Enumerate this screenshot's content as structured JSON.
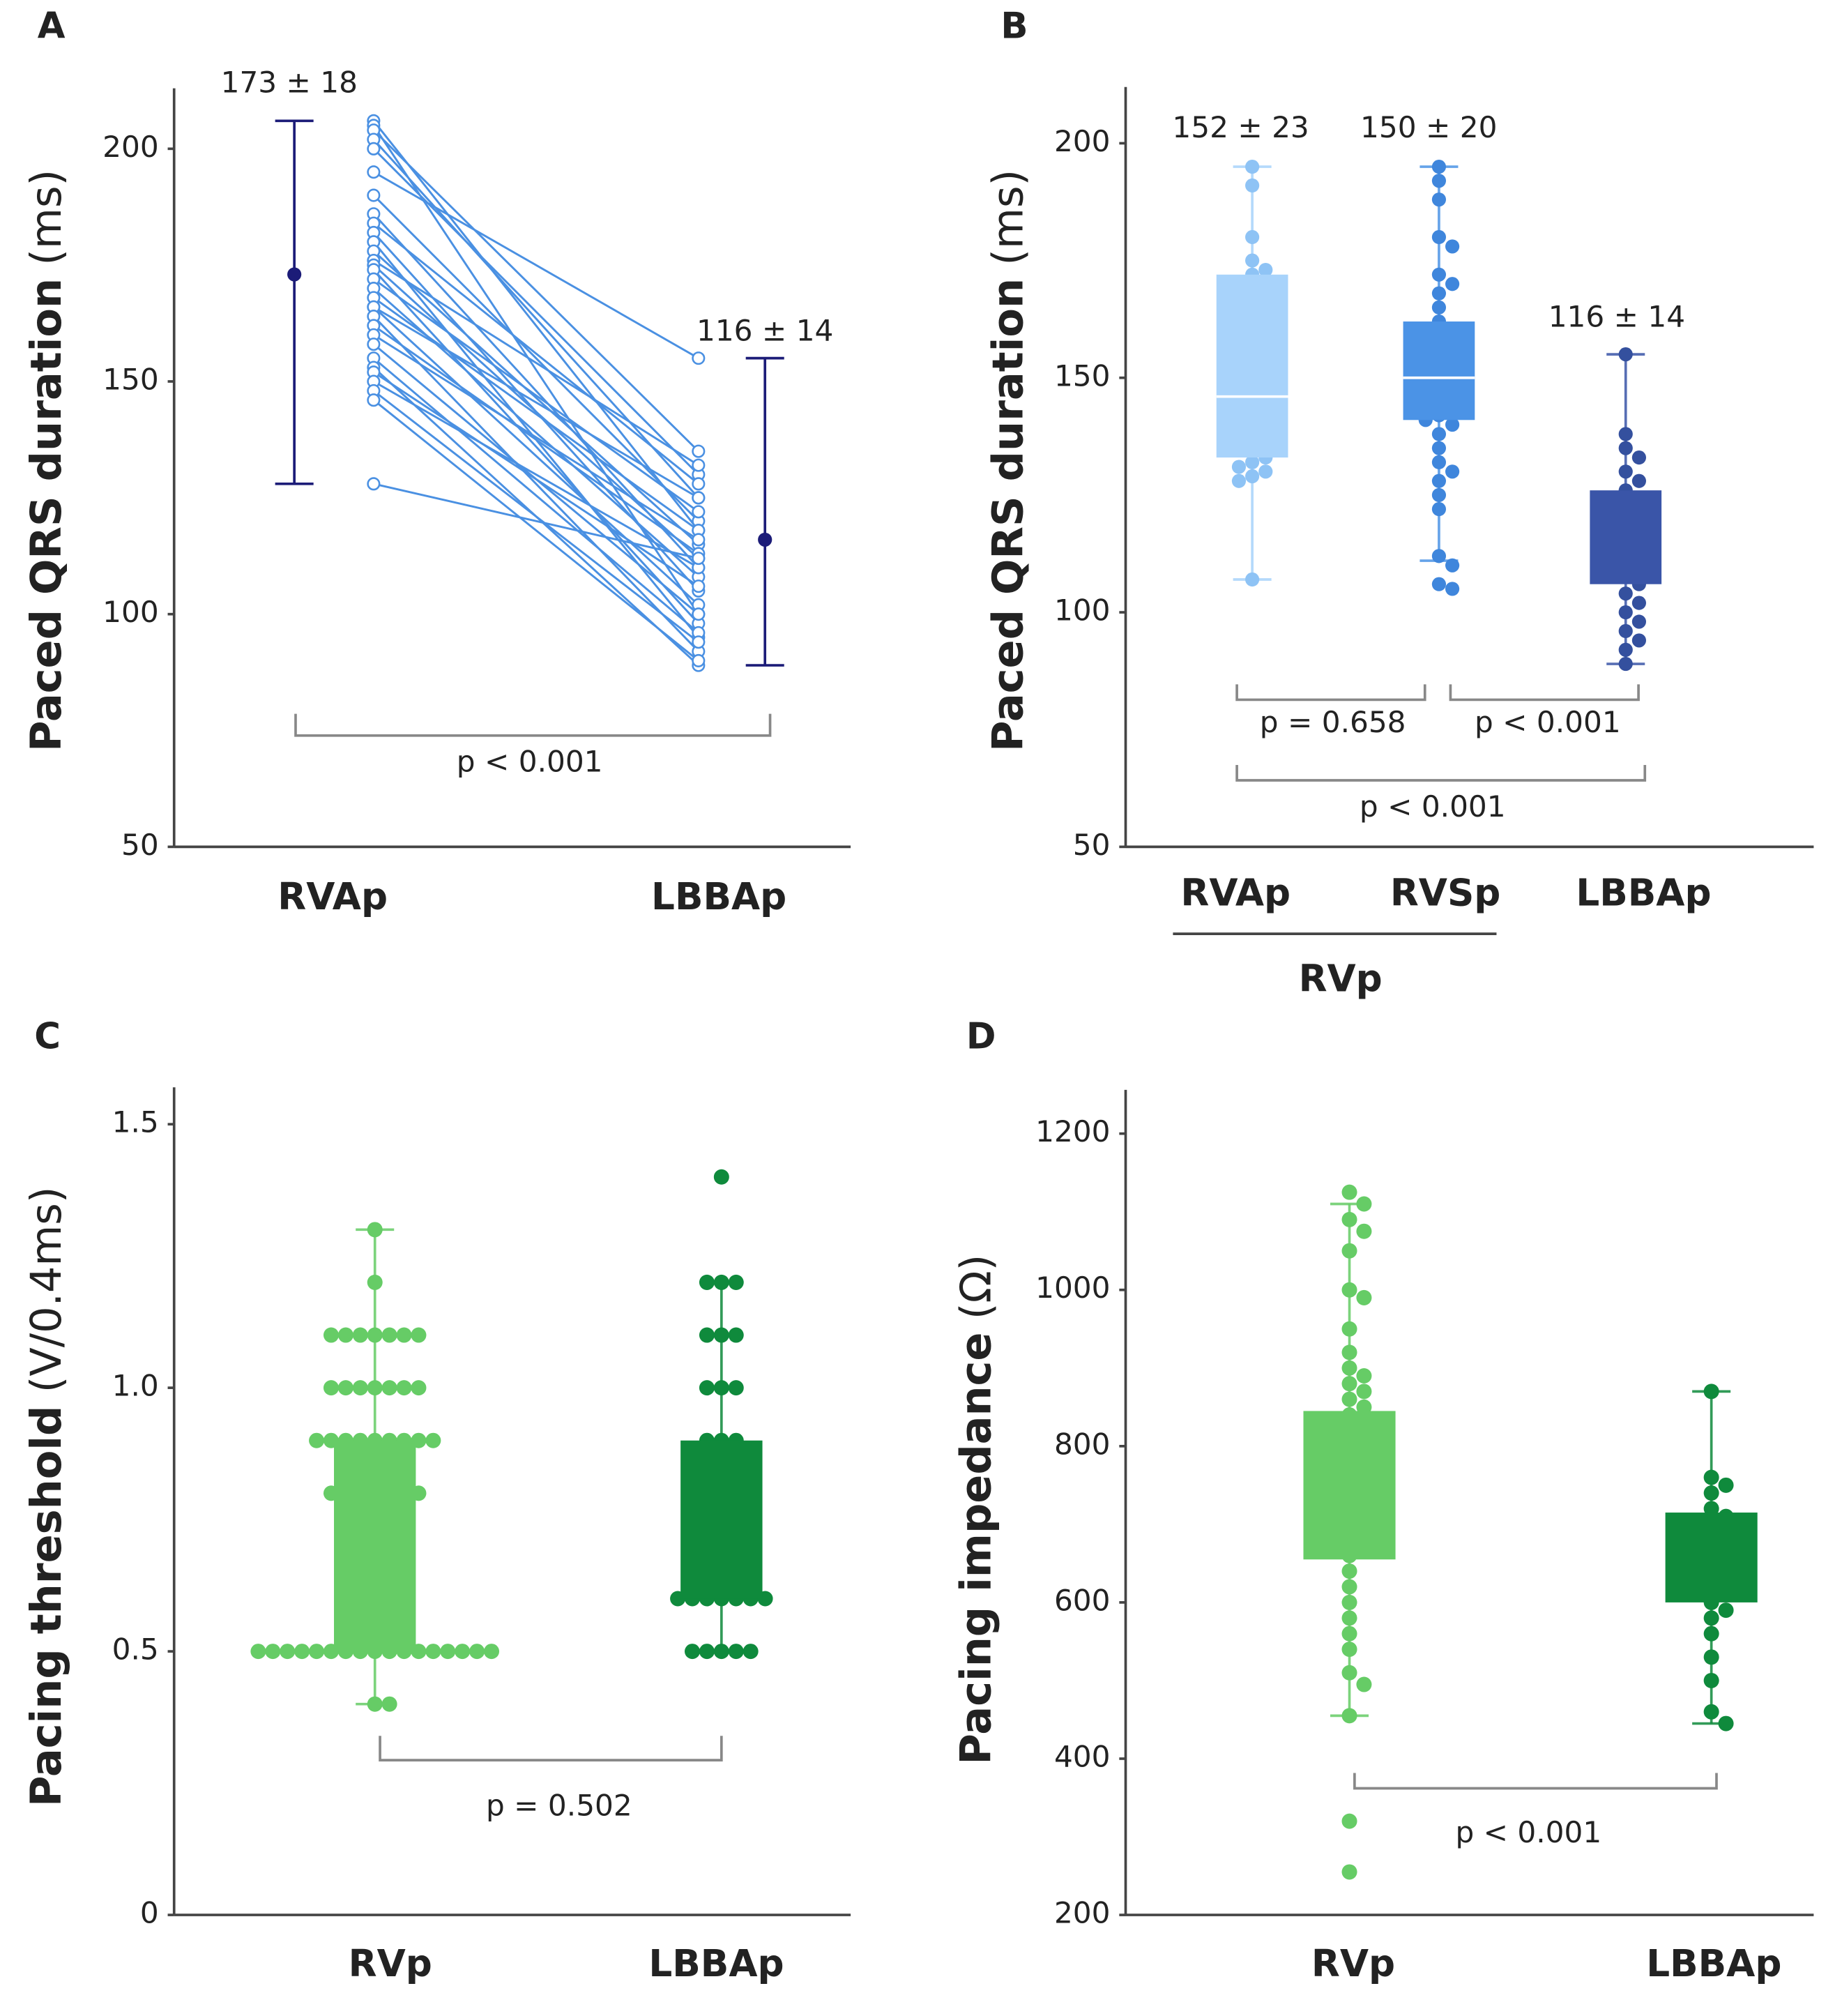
{
  "chart_data": [
    {
      "type": "paired",
      "panel": "A",
      "y_label": "Paced QRS duration",
      "y_unit": "(ms)",
      "categories": [
        "RVAp",
        "LBBAp"
      ],
      "ylim": [
        50,
        213
      ],
      "yticks": [
        50,
        100,
        150,
        200
      ],
      "color": "#4a90e2",
      "errorbar_color": "#1c1c78",
      "before": [
        206,
        205,
        204,
        202,
        200,
        195,
        190,
        186,
        184,
        182,
        180,
        178,
        176,
        175,
        174,
        172,
        170,
        168,
        166,
        166,
        164,
        162,
        160,
        158,
        155,
        153,
        152,
        150,
        148,
        146,
        128
      ],
      "after": [
        118,
        100,
        135,
        125,
        130,
        155,
        120,
        110,
        128,
        105,
        95,
        115,
        132,
        112,
        98,
        122,
        108,
        118,
        125,
        102,
        92,
        113,
        116,
        100,
        96,
        89,
        106,
        110,
        94,
        90,
        112
      ],
      "means": [
        173,
        116
      ],
      "whisker_low": [
        128,
        89
      ],
      "whisker_high": [
        206,
        155
      ],
      "value_labels": [
        "173 ± 18",
        "116 ± 14"
      ],
      "annotations": [
        "p < 0.001"
      ]
    },
    {
      "type": "box",
      "panel": "B",
      "y_label": "Paced QRS duration",
      "y_unit": "(ms)",
      "categories": [
        "RVAp",
        "RVSp",
        "LBBAp"
      ],
      "group_label": "RVp",
      "ylim": [
        50,
        212
      ],
      "yticks": [
        50,
        100,
        150,
        200
      ],
      "colors": [
        "#a8d3fb",
        "#4b93e6",
        "#3a55a8"
      ],
      "point_colors": [
        "#8ec3f5",
        "#3f86dc",
        "#34509e"
      ],
      "boxes": {
        "whisker_low": [
          107,
          111,
          89
        ],
        "q1": [
          133,
          141,
          106
        ],
        "median": [
          146,
          150,
          null
        ],
        "q3": [
          172,
          162,
          126
        ],
        "whisker_high": [
          195,
          195,
          155
        ]
      },
      "points": [
        [
          195,
          191,
          180,
          175,
          173,
          172,
          170,
          165,
          160,
          155,
          150,
          148,
          146,
          145,
          140,
          138,
          135,
          133,
          132,
          131,
          130,
          129,
          128,
          107
        ],
        [
          195,
          192,
          188,
          180,
          178,
          172,
          170,
          168,
          165,
          162,
          160,
          158,
          155,
          152,
          150,
          148,
          146,
          145,
          143,
          142,
          141,
          140,
          138,
          135,
          132,
          130,
          128,
          125,
          122,
          112,
          110,
          106,
          105
        ],
        [
          155,
          138,
          135,
          133,
          130,
          128,
          126,
          124,
          122,
          120,
          118,
          118,
          118,
          116,
          115,
          114,
          112,
          110,
          108,
          106,
          104,
          102,
          100,
          98,
          96,
          94,
          92,
          89
        ]
      ],
      "value_labels": [
        "152 ± 23",
        "150 ± 20",
        "116 ± 14"
      ],
      "annotations": [
        "p = 0.658",
        "p < 0.001",
        "p < 0.001"
      ]
    },
    {
      "type": "box",
      "panel": "C",
      "y_label": "Pacing threshold",
      "y_unit": "(V/0.4ms)",
      "categories": [
        "RVp",
        "LBBAp"
      ],
      "ylim": [
        0,
        1.57
      ],
      "yticks": [
        0,
        0.5,
        {
          "value": 1,
          "label": "1.0"
        },
        1.5
      ],
      "colors": [
        "#66cc66",
        "#0f8a3c"
      ],
      "point_colors": [
        "#66cc66",
        "#0f8a3c"
      ],
      "boxes": {
        "whisker_low": [
          0.4,
          0.5
        ],
        "q1": [
          0.5,
          0.6
        ],
        "median": [
          null,
          null
        ],
        "q3": [
          0.9,
          0.9
        ],
        "whisker_high": [
          1.3,
          1.2
        ]
      },
      "points": [
        [
          0.4,
          0.4,
          0.5,
          0.5,
          0.5,
          0.5,
          0.5,
          0.5,
          0.5,
          0.5,
          0.5,
          0.5,
          0.5,
          0.5,
          0.5,
          0.5,
          0.5,
          0.5,
          0.5,
          0.6,
          0.6,
          0.6,
          0.6,
          0.6,
          0.7,
          0.7,
          0.7,
          0.7,
          0.7,
          0.8,
          0.8,
          0.8,
          0.8,
          0.8,
          0.8,
          0.8,
          0.9,
          0.9,
          0.9,
          0.9,
          0.9,
          0.9,
          0.9,
          0.9,
          0.9,
          1,
          1,
          1,
          1,
          1,
          1,
          1,
          1.1,
          1.1,
          1.1,
          1.1,
          1.1,
          1.1,
          1.1,
          1.2,
          1.3
        ],
        [
          0.5,
          0.5,
          0.5,
          0.5,
          0.5,
          0.6,
          0.6,
          0.6,
          0.6,
          0.6,
          0.6,
          0.6,
          0.7,
          0.7,
          0.7,
          0.7,
          0.7,
          0.8,
          0.8,
          0.8,
          0.9,
          0.9,
          0.9,
          1,
          1,
          1,
          1.1,
          1.1,
          1.1,
          1.2,
          1.2,
          1.2,
          1.4
        ]
      ],
      "annotations": [
        "p = 0.502"
      ]
    },
    {
      "type": "box",
      "panel": "D",
      "y_label": "Pacing impedance",
      "y_unit": "(Ω)",
      "categories": [
        "RVp",
        "LBBAp"
      ],
      "ylim": [
        200,
        1256
      ],
      "yticks": [
        200,
        400,
        600,
        800,
        1000,
        1200
      ],
      "colors": [
        "#66cc66",
        "#0f8a3c"
      ],
      "point_colors": [
        "#66cc66",
        "#0f8a3c"
      ],
      "boxes": {
        "whisker_low": [
          455,
          445
        ],
        "q1": [
          655,
          600
        ],
        "median": [
          null,
          null
        ],
        "q3": [
          845,
          715
        ],
        "whisker_high": [
          1110,
          870
        ]
      },
      "points": [
        [
          1125,
          1110,
          1090,
          1075,
          1050,
          1000,
          990,
          950,
          920,
          900,
          890,
          880,
          870,
          860,
          850,
          840,
          820,
          800,
          780,
          760,
          740,
          720,
          700,
          680,
          660,
          640,
          620,
          600,
          580,
          560,
          540,
          510,
          495,
          455,
          320,
          255
        ],
        [
          870,
          760,
          750,
          740,
          720,
          710,
          700,
          690,
          680,
          670,
          660,
          650,
          640,
          630,
          620,
          610,
          600,
          590,
          580,
          560,
          530,
          500,
          460,
          445
        ]
      ],
      "annotations": [
        "p < 0.001"
      ]
    }
  ]
}
